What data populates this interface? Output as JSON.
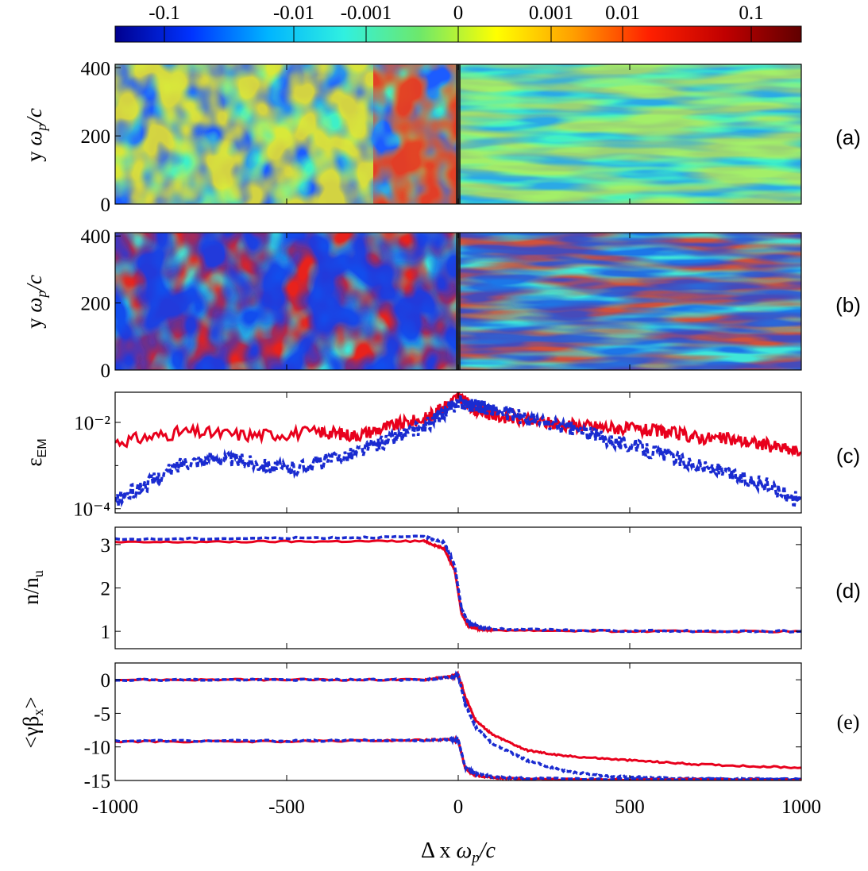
{
  "figure": {
    "colorbar": {
      "tick_labels": [
        "-0.1",
        "-0.01",
        "-0.001",
        "0",
        "0.001",
        "0.01",
        "0.1"
      ],
      "colors": [
        "#00008f",
        "#0033ff",
        "#00b4ff",
        "#30f0e0",
        "#6ee86a",
        "#ffff00",
        "#ffa000",
        "#ff2000",
        "#c00000",
        "#600000"
      ]
    },
    "shared_x_label": "Δ x ω_p/c",
    "shared_x_ticks": [
      "-1000",
      "-500",
      "0",
      "500",
      "1000"
    ],
    "shock_color": "#1a1a1a"
  },
  "chart_data": [
    {
      "type": "heatmap",
      "panel_label": "(a)",
      "ylabel": "y ω_p/c",
      "ylim": [
        0,
        410
      ],
      "yticks": [
        "0",
        "200",
        "400"
      ],
      "xlim": [
        -1000,
        1000
      ],
      "grid": false,
      "style": "upstream isotropic filaments, downstream fine oblique stripes, strong shock at x = 0"
    },
    {
      "type": "heatmap",
      "panel_label": "(b)",
      "ylabel": "y ω_p/c",
      "ylim": [
        0,
        410
      ],
      "yticks": [
        "0",
        "200",
        "400"
      ],
      "xlim": [
        -1000,
        1000
      ],
      "grid": false,
      "style": "upstream isotropic filaments, downstream elongated horizontal streaks, strong shock at x = 0"
    },
    {
      "type": "line",
      "panel_label": "(c)",
      "ylabel": "ε_EM",
      "yscale": "log",
      "ylim": [
        8e-05,
        0.05
      ],
      "yticks": [
        "10⁻⁴",
        "10⁻²"
      ],
      "xlim": [
        -1000,
        1000
      ],
      "series": [
        {
          "name": "solid",
          "color": "#e8001c",
          "dash": "solid",
          "x": [
            -1000,
            -800,
            -600,
            -400,
            -300,
            -200,
            -100,
            -50,
            0,
            50,
            100,
            200,
            300,
            400,
            500,
            600,
            700,
            800,
            900,
            1000
          ],
          "y": [
            0.0035,
            0.006,
            0.005,
            0.006,
            0.005,
            0.008,
            0.012,
            0.02,
            0.04,
            0.02,
            0.015,
            0.011,
            0.009,
            0.008,
            0.007,
            0.006,
            0.0045,
            0.004,
            0.003,
            0.002
          ]
        },
        {
          "name": "dashed",
          "color": "#1a2bd0",
          "dash": "dashed",
          "x": [
            -1000,
            -900,
            -800,
            -700,
            -600,
            -500,
            -400,
            -300,
            -200,
            -100,
            -50,
            0,
            50,
            100,
            200,
            300,
            400,
            500,
            600,
            700,
            800,
            900,
            1000
          ],
          "y": [
            0.00015,
            0.0004,
            0.0012,
            0.0015,
            0.0012,
            0.0008,
            0.0012,
            0.002,
            0.004,
            0.008,
            0.015,
            0.03,
            0.025,
            0.02,
            0.012,
            0.008,
            0.005,
            0.003,
            0.0018,
            0.001,
            0.0006,
            0.00035,
            0.00015
          ]
        }
      ]
    },
    {
      "type": "line",
      "panel_label": "(d)",
      "ylabel": "n/n_u",
      "ylim": [
        0.6,
        3.4
      ],
      "yticks": [
        "1",
        "2",
        "3"
      ],
      "xlim": [
        -1000,
        1000
      ],
      "series": [
        {
          "name": "solid",
          "color": "#e8001c",
          "dash": "solid",
          "x": [
            -1000,
            -500,
            -100,
            -40,
            -10,
            10,
            30,
            60,
            100,
            500,
            1000
          ],
          "y": [
            3.05,
            3.07,
            3.08,
            2.9,
            2.4,
            1.4,
            1.12,
            1.06,
            1.03,
            1.0,
            1.0
          ]
        },
        {
          "name": "dashed",
          "color": "#1a2bd0",
          "dash": "dashed",
          "x": [
            -1000,
            -500,
            -100,
            -40,
            -10,
            10,
            30,
            60,
            100,
            500,
            1000
          ],
          "y": [
            3.12,
            3.15,
            3.18,
            3.05,
            2.5,
            1.5,
            1.2,
            1.1,
            1.05,
            1.01,
            1.0
          ]
        }
      ]
    },
    {
      "type": "line",
      "panel_label": "(e)",
      "ylabel": "<γβ_x>",
      "ylim": [
        -15,
        2.5
      ],
      "yticks": [
        "-15",
        "-10",
        "-5",
        "0"
      ],
      "xlim": [
        -1000,
        1000
      ],
      "series": [
        {
          "name": "solid-upper",
          "color": "#e8001c",
          "dash": "solid",
          "x": [
            -1000,
            -500,
            -100,
            -20,
            0,
            20,
            50,
            100,
            200,
            300,
            500,
            700,
            1000
          ],
          "y": [
            0,
            0,
            0,
            0.5,
            0.8,
            -2.5,
            -6,
            -8.2,
            -10.5,
            -11.3,
            -12,
            -12.6,
            -13.1
          ]
        },
        {
          "name": "dashed-upper",
          "color": "#1a2bd0",
          "dash": "dashed",
          "x": [
            -1000,
            -500,
            -100,
            -20,
            0,
            20,
            50,
            100,
            200,
            300,
            400,
            500,
            700,
            1000
          ],
          "y": [
            0,
            0,
            0,
            0.4,
            0.7,
            -3.5,
            -7,
            -9.5,
            -12,
            -13.5,
            -14.2,
            -14.5,
            -14.7,
            -14.8
          ]
        },
        {
          "name": "solid-lower",
          "color": "#e8001c",
          "dash": "solid",
          "x": [
            -1000,
            -500,
            -100,
            -20,
            0,
            20,
            50,
            100,
            200,
            500,
            1000
          ],
          "y": [
            -9.2,
            -9.2,
            -9.0,
            -8.9,
            -9.0,
            -13.2,
            -14.2,
            -14.6,
            -14.8,
            -14.85,
            -14.9
          ]
        },
        {
          "name": "dashed-lower",
          "color": "#1a2bd0",
          "dash": "dashed",
          "x": [
            -1000,
            -500,
            -100,
            -20,
            0,
            20,
            50,
            100,
            200,
            500,
            1000
          ],
          "y": [
            -9.1,
            -9.1,
            -9.0,
            -8.9,
            -9.0,
            -13.0,
            -14.0,
            -14.5,
            -14.7,
            -14.8,
            -14.85
          ]
        }
      ]
    }
  ]
}
